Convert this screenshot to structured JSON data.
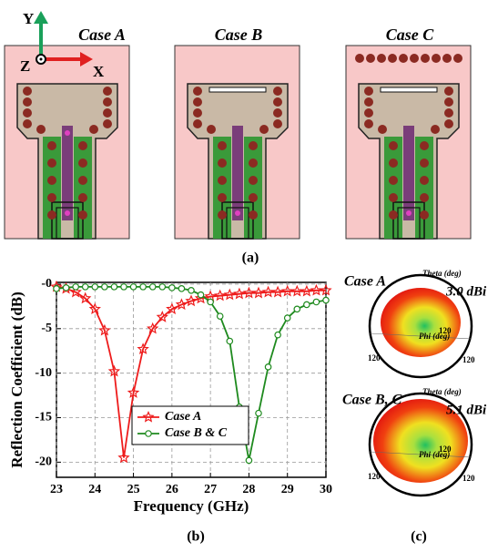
{
  "figure": {
    "cases": [
      "Case A",
      "Case B",
      "Case C"
    ],
    "axes": {
      "y": "Y",
      "z": "Z",
      "x": "X"
    },
    "panel_labels": [
      "(a)",
      "(b)",
      "(c)"
    ],
    "patterns": [
      {
        "case": "Case A",
        "gain": "3.0 dBi",
        "theta": "Theta (deg)",
        "phi": "Phi (deg)",
        "angles": [
          "120",
          "120",
          "120"
        ]
      },
      {
        "case": "Case B, C",
        "gain": "5.1 dBi",
        "theta": "Theta (deg)",
        "phi": "Phi (deg)",
        "angles": [
          "120",
          "120",
          "120"
        ]
      }
    ]
  },
  "chart_data": {
    "type": "line",
    "x_label": "Frequency (GHz)",
    "y_label": "Reflection Coefficient (dB)",
    "x": [
      23,
      23.25,
      23.5,
      23.75,
      24,
      24.25,
      24.5,
      24.75,
      25,
      25.25,
      25.5,
      25.75,
      26,
      26.25,
      26.5,
      26.75,
      27,
      27.25,
      27.5,
      27.75,
      28,
      28.25,
      28.5,
      28.75,
      29,
      29.25,
      29.5,
      29.75,
      30
    ],
    "series": [
      {
        "name": "Case A",
        "color": "#ee1c1c",
        "marker": "star",
        "values": [
          -0.3,
          -0.5,
          -0.9,
          -1.6,
          -2.8,
          -5.2,
          -9.8,
          -19.5,
          -12.2,
          -7.3,
          -5.0,
          -3.7,
          -2.8,
          -2.3,
          -1.9,
          -1.6,
          -1.4,
          -1.3,
          -1.2,
          -1.1,
          -1.0,
          -1.0,
          -0.9,
          -0.9,
          -0.8,
          -0.8,
          -0.8,
          -0.7,
          -0.7
        ]
      },
      {
        "name": "Case B & C",
        "color": "#1e8a1e",
        "marker": "circle",
        "values": [
          -0.5,
          -0.4,
          -0.3,
          -0.3,
          -0.3,
          -0.3,
          -0.3,
          -0.3,
          -0.3,
          -0.3,
          -0.3,
          -0.3,
          -0.4,
          -0.5,
          -0.7,
          -1.2,
          -2.0,
          -3.6,
          -6.4,
          -13.8,
          -19.8,
          -14.5,
          -9.3,
          -5.7,
          -3.8,
          -2.8,
          -2.3,
          -2.0,
          -1.8
        ]
      }
    ],
    "xlim": [
      23,
      30
    ],
    "xticks": [
      23,
      24,
      25,
      26,
      27,
      28,
      29,
      30
    ],
    "ylim": [
      -21.7,
      0.2
    ],
    "yticks": [
      {
        "value": 0,
        "label": "-0"
      },
      -5,
      -10,
      -15,
      -20
    ],
    "grid": true,
    "legend": "lower center"
  }
}
